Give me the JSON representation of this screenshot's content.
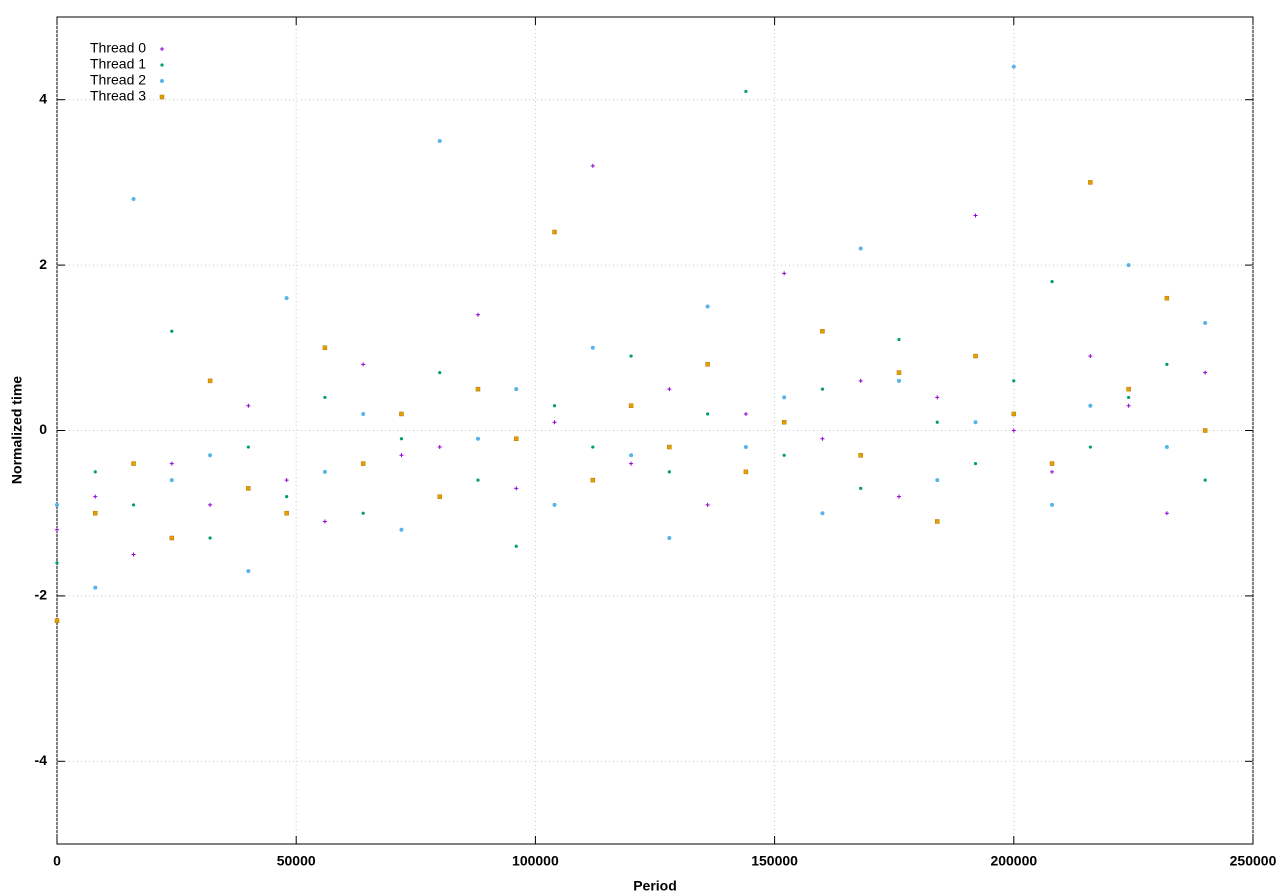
{
  "chart_data": {
    "type": "scatter",
    "x_label": "Period",
    "y_label": "Normalized time",
    "xlim": [
      0,
      250000
    ],
    "xticks": [
      0,
      50000,
      100000,
      150000,
      200000,
      250000
    ],
    "ylim": [
      -5,
      5
    ],
    "yticks": [
      -4,
      -2,
      0,
      2,
      4
    ],
    "grid": true,
    "legend": "top-left",
    "x": [
      0,
      8000,
      16000,
      24000,
      32000,
      40000,
      48000,
      56000,
      64000,
      72000,
      80000,
      88000,
      96000,
      104000,
      112000,
      120000,
      128000,
      136000,
      144000,
      152000,
      160000,
      168000,
      176000,
      184000,
      192000,
      200000,
      208000,
      216000,
      224000,
      232000,
      240000
    ],
    "series": [
      {
        "name": "Thread 0",
        "color": "#9400d3",
        "marker": "plus",
        "values": [
          -1.2,
          -0.8,
          -1.5,
          -0.4,
          -0.9,
          0.3,
          -0.6,
          -1.1,
          0.8,
          -0.3,
          -0.2,
          1.4,
          -0.7,
          0.1,
          3.2,
          -0.4,
          0.5,
          -0.9,
          0.2,
          1.9,
          -0.1,
          0.6,
          -0.8,
          0.4,
          2.6,
          0.0,
          -0.5,
          0.9,
          0.3,
          -1.0,
          0.7
        ]
      },
      {
        "name": "Thread 1",
        "color": "#009e73",
        "marker": "dot",
        "values": [
          -1.6,
          -0.5,
          -0.9,
          1.2,
          -1.3,
          -0.2,
          -0.8,
          0.4,
          -1.0,
          -0.1,
          0.7,
          -0.6,
          -1.4,
          0.3,
          -0.2,
          0.9,
          -0.5,
          0.2,
          4.1,
          -0.3,
          0.5,
          -0.7,
          1.1,
          0.1,
          -0.4,
          0.6,
          1.8,
          -0.2,
          0.4,
          0.8,
          -0.6
        ]
      },
      {
        "name": "Thread 2",
        "color": "#56b4e9",
        "marker": "circle",
        "values": [
          -0.9,
          -1.9,
          2.8,
          -0.6,
          -0.3,
          -1.7,
          1.6,
          -0.5,
          0.2,
          -1.2,
          3.5,
          -0.1,
          0.5,
          -0.9,
          1.0,
          -0.3,
          -1.3,
          1.5,
          -0.2,
          0.4,
          -1.0,
          2.2,
          0.6,
          -0.6,
          0.1,
          4.4,
          -0.9,
          0.3,
          2.0,
          -0.2,
          1.3
        ]
      },
      {
        "name": "Thread 3",
        "color": "#e69f00",
        "marker": "square",
        "values": [
          -2.3,
          -1.0,
          -0.4,
          -1.3,
          0.6,
          -0.7,
          -1.0,
          1.0,
          -0.4,
          0.2,
          -0.8,
          0.5,
          -0.1,
          2.4,
          -0.6,
          0.3,
          -0.2,
          0.8,
          -0.5,
          0.1,
          1.2,
          -0.3,
          0.7,
          -1.1,
          0.9,
          0.2,
          -0.4,
          3.0,
          0.5,
          1.6,
          0.0
        ]
      }
    ]
  }
}
